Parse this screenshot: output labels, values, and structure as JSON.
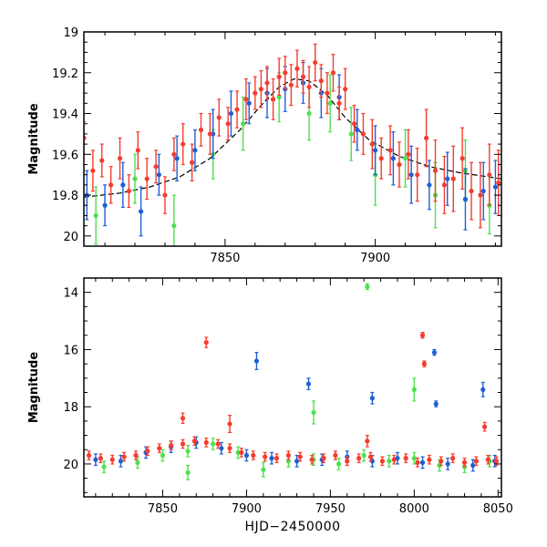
{
  "colors": {
    "red": "#f43d2e",
    "blue": "#1f5fd6",
    "green": "#4ee04e",
    "model": "#000000",
    "frame": "#000000"
  },
  "chart_data": [
    {
      "type": "scatter",
      "title": "",
      "xlabel": "",
      "ylabel": "Magnitude",
      "xlim": [
        7803,
        7942
      ],
      "ylim": [
        20.05,
        19.0
      ],
      "y_inverted": true,
      "grid": false,
      "xticks": [
        7850,
        7900
      ],
      "xtick_labels": [
        "7850",
        "7900"
      ],
      "yticks": [
        19,
        19.2,
        19.4,
        19.6,
        19.8,
        20
      ],
      "ytick_labels": [
        "19",
        "19.2",
        "19.4",
        "19.6",
        "19.8",
        "20"
      ],
      "model_curve": {
        "x": [
          7803,
          7815,
          7825,
          7835,
          7845,
          7855,
          7862,
          7868,
          7873,
          7878,
          7884,
          7890,
          7898,
          7908,
          7918,
          7928,
          7942
        ],
        "y": [
          19.81,
          19.79,
          19.76,
          19.71,
          19.62,
          19.48,
          19.36,
          19.27,
          19.23,
          19.24,
          19.31,
          19.42,
          19.53,
          19.61,
          19.66,
          19.69,
          19.72
        ]
      },
      "series": [
        {
          "name": "red",
          "x": [
            7803,
            7806,
            7809,
            7812,
            7815,
            7818,
            7821,
            7824,
            7827,
            7830,
            7833,
            7836,
            7839,
            7842,
            7845,
            7848,
            7851,
            7854,
            7857,
            7860,
            7862,
            7864,
            7866,
            7868,
            7870,
            7872,
            7874,
            7876,
            7878,
            7880,
            7882,
            7884,
            7886,
            7888,
            7890,
            7893,
            7896,
            7899,
            7902,
            7905,
            7908,
            7911,
            7914,
            7917,
            7920,
            7923,
            7926,
            7929,
            7932,
            7935,
            7938,
            7941
          ],
          "y": [
            19.52,
            19.68,
            19.63,
            19.75,
            19.62,
            19.78,
            19.58,
            19.72,
            19.66,
            19.8,
            19.6,
            19.55,
            19.64,
            19.48,
            19.5,
            19.42,
            19.45,
            19.38,
            19.33,
            19.3,
            19.28,
            19.25,
            19.33,
            19.22,
            19.2,
            19.26,
            19.18,
            19.22,
            19.27,
            19.15,
            19.24,
            19.3,
            19.2,
            19.35,
            19.28,
            19.45,
            19.5,
            19.55,
            19.62,
            19.58,
            19.65,
            19.6,
            19.7,
            19.52,
            19.68,
            19.75,
            19.72,
            19.62,
            19.78,
            19.8,
            19.7,
            19.74
          ],
          "err": [
            0.08,
            0.1,
            0.08,
            0.09,
            0.1,
            0.08,
            0.09,
            0.1,
            0.08,
            0.09,
            0.08,
            0.1,
            0.09,
            0.08,
            0.1,
            0.09,
            0.08,
            0.09,
            0.1,
            0.08,
            0.09,
            0.08,
            0.1,
            0.09,
            0.08,
            0.1,
            0.09,
            0.08,
            0.1,
            0.09,
            0.08,
            0.1,
            0.09,
            0.08,
            0.1,
            0.09,
            0.1,
            0.12,
            0.1,
            0.12,
            0.11,
            0.12,
            0.13,
            0.14,
            0.15,
            0.14,
            0.16,
            0.15,
            0.14,
            0.16,
            0.15,
            0.16
          ]
        },
        {
          "name": "blue",
          "x": [
            7804,
            7810,
            7816,
            7822,
            7828,
            7834,
            7840,
            7846,
            7852,
            7858,
            7864,
            7870,
            7876,
            7882,
            7888,
            7894,
            7900,
            7906,
            7912,
            7918,
            7924,
            7930,
            7936,
            7940
          ],
          "y": [
            19.8,
            19.85,
            19.75,
            19.88,
            19.7,
            19.62,
            19.58,
            19.5,
            19.4,
            19.35,
            19.3,
            19.28,
            19.25,
            19.3,
            19.32,
            19.48,
            19.58,
            19.62,
            19.7,
            19.75,
            19.72,
            19.82,
            19.78,
            19.76
          ],
          "err": [
            0.12,
            0.1,
            0.11,
            0.12,
            0.1,
            0.11,
            0.1,
            0.12,
            0.11,
            0.1,
            0.12,
            0.11,
            0.1,
            0.12,
            0.11,
            0.1,
            0.12,
            0.13,
            0.14,
            0.12,
            0.13,
            0.15,
            0.14,
            0.13
          ]
        },
        {
          "name": "green",
          "x": [
            7807,
            7820,
            7833,
            7846,
            7856,
            7868,
            7878,
            7885,
            7892,
            7900,
            7910,
            7920,
            7930,
            7938
          ],
          "y": [
            19.9,
            19.72,
            19.95,
            19.6,
            19.45,
            19.32,
            19.4,
            19.35,
            19.5,
            19.7,
            19.62,
            19.8,
            19.68,
            19.85
          ],
          "err": [
            0.14,
            0.12,
            0.15,
            0.12,
            0.13,
            0.12,
            0.13,
            0.14,
            0.13,
            0.15,
            0.14,
            0.16,
            0.15,
            0.14
          ]
        }
      ]
    },
    {
      "type": "scatter",
      "title": "",
      "xlabel": "HJD−2450000",
      "ylabel": "Magnitude",
      "xlim": [
        7803,
        8052
      ],
      "ylim": [
        21.15,
        13.5
      ],
      "y_inverted": true,
      "grid": false,
      "xticks": [
        7850,
        7900,
        7950,
        8000,
        8050
      ],
      "xtick_labels": [
        "7850",
        "7900",
        "7950",
        "8000",
        "8050"
      ],
      "yticks": [
        14,
        16,
        18,
        20
      ],
      "ytick_labels": [
        "14",
        "16",
        "18",
        "20"
      ],
      "series": [
        {
          "name": "red",
          "x": [
            7806,
            7813,
            7820,
            7827,
            7834,
            7841,
            7848,
            7855,
            7862,
            7869,
            7876,
            7883,
            7890,
            7897,
            7904,
            7911,
            7918,
            7925,
            7932,
            7939,
            7946,
            7953,
            7960,
            7967,
            7974,
            7981,
            7988,
            7995,
            8002,
            8009,
            8016,
            8023,
            8030,
            8037,
            8044,
            8049,
            7862,
            7876,
            7890,
            7972,
            8005,
            8006,
            8042
          ],
          "y": [
            19.7,
            19.8,
            19.85,
            19.75,
            19.7,
            19.55,
            19.45,
            19.35,
            19.3,
            19.2,
            19.25,
            19.3,
            19.45,
            19.6,
            19.7,
            19.75,
            19.8,
            19.7,
            19.75,
            19.85,
            19.8,
            19.7,
            19.9,
            19.8,
            19.75,
            19.9,
            19.85,
            19.8,
            19.95,
            19.85,
            19.9,
            19.8,
            19.95,
            19.9,
            19.85,
            19.9,
            18.4,
            15.75,
            18.6,
            19.2,
            15.5,
            16.5,
            18.7
          ],
          "err": [
            0.15,
            0.15,
            0.15,
            0.15,
            0.15,
            0.15,
            0.15,
            0.15,
            0.15,
            0.15,
            0.15,
            0.15,
            0.15,
            0.15,
            0.15,
            0.15,
            0.15,
            0.15,
            0.15,
            0.15,
            0.15,
            0.15,
            0.15,
            0.15,
            0.15,
            0.15,
            0.15,
            0.15,
            0.15,
            0.15,
            0.15,
            0.15,
            0.15,
            0.15,
            0.15,
            0.15,
            0.18,
            0.18,
            0.3,
            0.2,
            0.1,
            0.1,
            0.15
          ]
        },
        {
          "name": "blue",
          "x": [
            7810,
            7825,
            7840,
            7855,
            7870,
            7885,
            7900,
            7915,
            7930,
            7945,
            7960,
            7975,
            7990,
            8005,
            8020,
            8035,
            8048,
            7906,
            7937,
            7975,
            8012,
            8013,
            8041
          ],
          "y": [
            19.85,
            19.9,
            19.6,
            19.4,
            19.25,
            19.45,
            19.7,
            19.8,
            19.9,
            19.85,
            19.75,
            19.9,
            19.8,
            19.95,
            20.0,
            20.05,
            19.9,
            16.4,
            17.2,
            17.7,
            16.1,
            17.9,
            17.4
          ],
          "err": [
            0.2,
            0.2,
            0.2,
            0.2,
            0.2,
            0.2,
            0.2,
            0.2,
            0.2,
            0.2,
            0.2,
            0.2,
            0.2,
            0.2,
            0.2,
            0.2,
            0.2,
            0.3,
            0.2,
            0.2,
            0.1,
            0.1,
            0.25
          ]
        },
        {
          "name": "green",
          "x": [
            7815,
            7835,
            7850,
            7865,
            7880,
            7895,
            7910,
            7925,
            7940,
            7955,
            7970,
            7985,
            8000,
            8015,
            8030,
            8045,
            7865,
            7940,
            7972,
            8000
          ],
          "y": [
            20.1,
            19.95,
            19.7,
            19.55,
            19.3,
            19.6,
            20.2,
            19.9,
            19.85,
            20.0,
            19.7,
            19.9,
            19.8,
            20.05,
            20.1,
            19.9,
            20.3,
            18.2,
            13.8,
            17.4
          ],
          "err": [
            0.2,
            0.2,
            0.2,
            0.2,
            0.2,
            0.2,
            0.25,
            0.2,
            0.2,
            0.2,
            0.2,
            0.2,
            0.2,
            0.2,
            0.2,
            0.2,
            0.25,
            0.4,
            0.1,
            0.4
          ]
        }
      ]
    }
  ]
}
